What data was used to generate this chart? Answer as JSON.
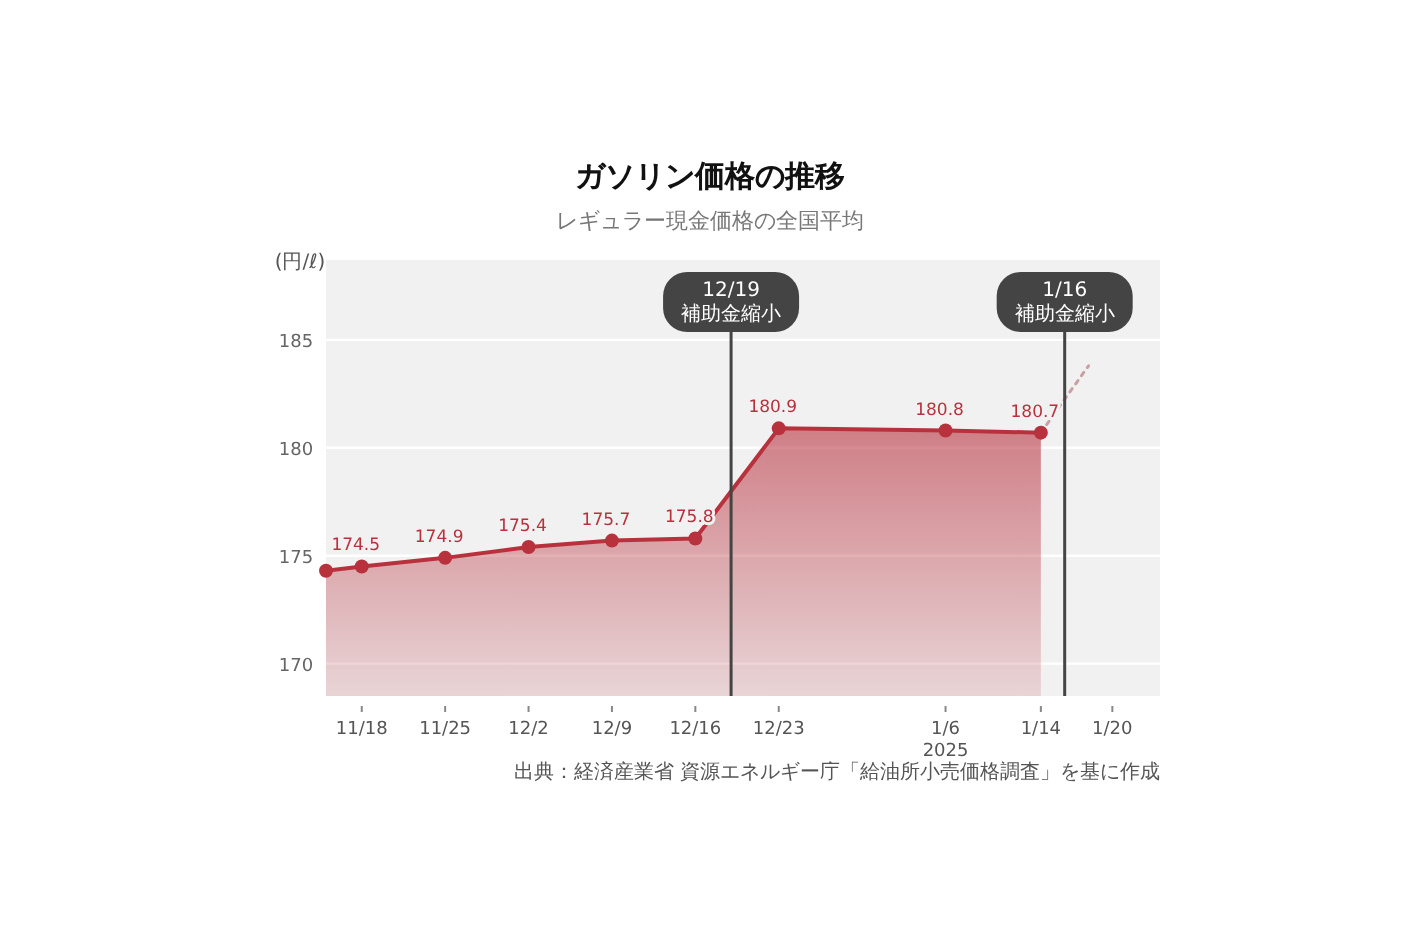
{
  "chart_data": {
    "type": "area",
    "title": "ガソリン価格の推移",
    "subtitle": "レギュラー現金価格の全国平均",
    "ylabel": "(円/ℓ)",
    "annotations": [
      "出典：経済産業省 資源エネルギー庁「給油所小売価格調査」を基に作成"
    ],
    "xlim": [
      "2024-11-15",
      "2025-01-24"
    ],
    "xticks": [
      {
        "value": "2024-11-18",
        "label": "11/18"
      },
      {
        "value": "2024-11-25",
        "label": "11/25"
      },
      {
        "value": "2024-12-02",
        "label": "12/2"
      },
      {
        "value": "2024-12-09",
        "label": "12/9"
      },
      {
        "value": "2024-12-16",
        "label": "12/16"
      },
      {
        "value": "2024-12-23",
        "label": "12/23"
      },
      {
        "value": "2025-01-06",
        "label": "1/6\n2025"
      },
      {
        "value": "2025-01-14",
        "label": "1/14"
      },
      {
        "value": "2025-01-20",
        "label": "1/20"
      }
    ],
    "ylim": [
      168.5,
      188.7
    ],
    "yticks": [
      170,
      175,
      180,
      185
    ],
    "grid": "y",
    "marker": "circle",
    "series": [
      {
        "type": "area",
        "color": "#b8323e",
        "x": [
          "2024-11-15",
          "2024-11-18",
          "2024-11-25",
          "2024-12-02",
          "2024-12-09",
          "2024-12-16",
          "2024-12-23",
          "2025-01-06",
          "2025-01-14"
        ],
        "values": [
          174.3,
          174.5,
          174.9,
          175.4,
          175.7,
          175.8,
          180.9,
          180.8,
          180.7
        ],
        "value_labels": [
          null,
          "174.5",
          "174.9",
          "175.4",
          "175.7",
          "175.8",
          "180.9",
          "180.8",
          "180.7"
        ]
      },
      {
        "type": "line",
        "line_style": "dotted",
        "marker": "none",
        "color": "#c9a0a4",
        "x": [
          "2025-01-14",
          "2025-01-18"
        ],
        "values": [
          180.7,
          183.8
        ]
      }
    ],
    "ref_lines": [
      {
        "axis": "x",
        "value": "2024-12-19",
        "label": "12/19\n補助金縮小",
        "color": "#444444"
      },
      {
        "axis": "x",
        "value": "2025-01-16",
        "label": "1/16\n補助金縮小",
        "color": "#444444"
      }
    ]
  }
}
